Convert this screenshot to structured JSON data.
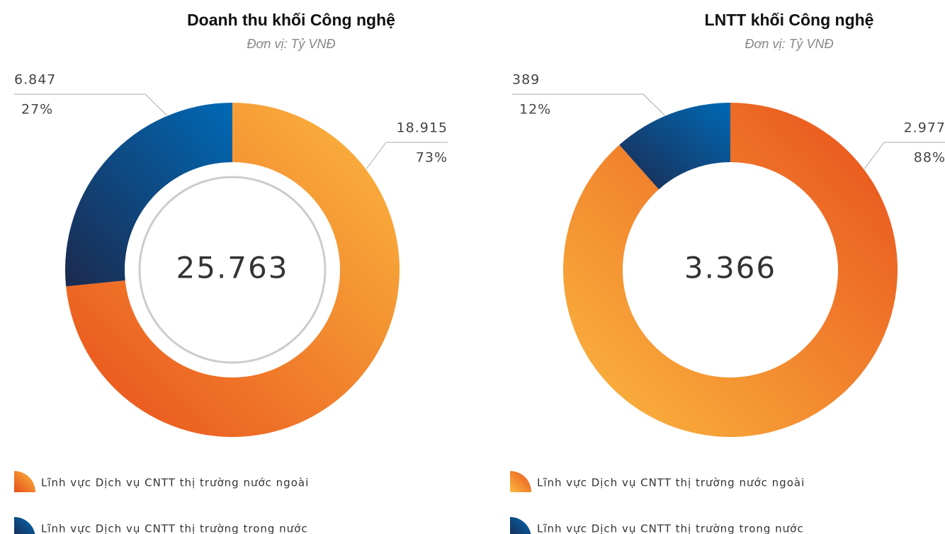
{
  "chart_data": [
    {
      "type": "pie",
      "title": "Doanh thu khối Công nghệ",
      "subtitle": "Đơn vị: Tỷ VNĐ",
      "total": 25763,
      "total_label": "25.763",
      "categories": [
        "Lĩnh vực Dịch vụ CNTT thị trường nước ngoài",
        "Lĩnh vực Dịch vụ CNTT thị trường trong nước"
      ],
      "values": [
        18915,
        6847
      ],
      "value_labels": [
        "18.915",
        "6.847"
      ],
      "percents": [
        73,
        27
      ],
      "percent_labels": [
        "73%",
        "27%"
      ],
      "colors": [
        [
          "#e84e1b",
          "#fbba40"
        ],
        [
          "#1c2a4f",
          "#0069b5"
        ]
      ]
    },
    {
      "type": "pie",
      "title": "LNTT khối Công nghệ",
      "subtitle": "Đơn vị: Tỷ VNĐ",
      "total": 3366,
      "total_label": "3.366",
      "categories": [
        "Lĩnh vực Dịch vụ CNTT thị trường nước ngoài",
        "Lĩnh vực Dịch vụ CNTT thị trường trong nước"
      ],
      "values": [
        2977,
        389
      ],
      "value_labels": [
        "2.977",
        "389"
      ],
      "percents": [
        88,
        12
      ],
      "percent_labels": [
        "88%",
        "12%"
      ],
      "colors": [
        [
          "#e84e1b",
          "#fbba40"
        ],
        [
          "#1c2a4f",
          "#0069b5"
        ]
      ]
    }
  ]
}
